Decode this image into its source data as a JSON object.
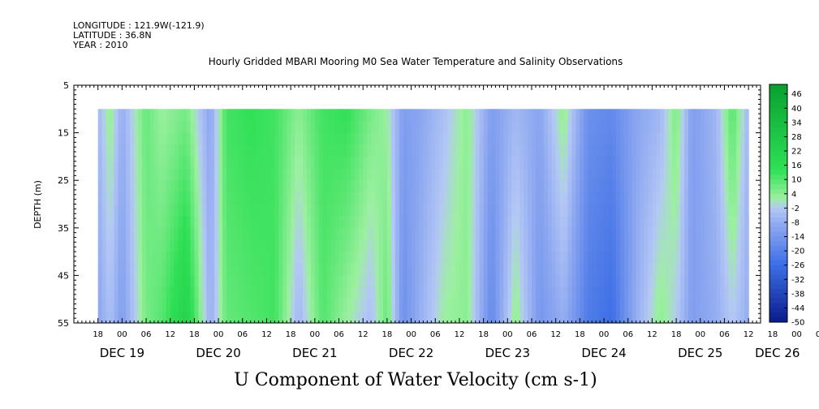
{
  "header": {
    "longitude": "LONGITUDE : 121.9W(-121.9)",
    "latitude": "LATITUDE : 36.8N",
    "year": "YEAR : 2010"
  },
  "chart_data": {
    "type": "heatmap",
    "title": "Hourly Gridded MBARI Mooring M0 Sea Water Temperature and Salinity Observations",
    "ylabel": "DEPTH (m)",
    "xlabel": "U Component of Water Velocity (cm s-1)",
    "ylim": [
      55,
      5
    ],
    "yticks": [
      "5",
      "15",
      "25",
      "35",
      "45",
      "55"
    ],
    "x_hour_ticks": [
      "18",
      "00",
      "06",
      "12",
      "18",
      "00",
      "06",
      "12",
      "18",
      "00",
      "06",
      "12",
      "18",
      "00",
      "06",
      "12",
      "18",
      "00",
      "06",
      "12",
      "18",
      "00",
      "06",
      "12",
      "18",
      "00",
      "06",
      "12",
      "18",
      "00",
      "06",
      "12"
    ],
    "x_day_labels": [
      "DEC 19",
      "DEC 20",
      "DEC 21",
      "DEC 22",
      "DEC 23",
      "DEC 24",
      "DEC 25",
      "DEC 26"
    ],
    "time_range": [
      "2010-12-19 12:00",
      "2010-12-26 15:00"
    ],
    "data_time_range": [
      "2010-12-19 18:00",
      "2010-12-26 12:00"
    ],
    "data_depth_range": [
      10,
      55
    ],
    "colorbar_levels": [
      "46",
      "40",
      "34",
      "28",
      "22",
      "16",
      "10",
      "4",
      "-2",
      "-8",
      "-14",
      "-20",
      "-26",
      "-32",
      "-38",
      "-44",
      "-50"
    ],
    "colorbar_min": -50,
    "colorbar_max": 50,
    "colors": {
      "strong_negative": "#0a1a8c",
      "negative": "#3c6ee6",
      "weak_negative": "#8aa5f0",
      "near_zero": "#b4c8f5",
      "weak_positive": "#9cf0a0",
      "positive": "#2fe055",
      "strong_positive": "#08a030"
    },
    "profile_columns": [
      {
        "time": "DEC 19 18",
        "surface": -6,
        "bottom": -10
      },
      {
        "time": "DEC 19 21",
        "surface": 4,
        "bottom": -4
      },
      {
        "time": "DEC 20 00",
        "surface": -8,
        "bottom": -12
      },
      {
        "time": "DEC 20 06",
        "surface": 8,
        "bottom": 6
      },
      {
        "time": "DEC 20 10",
        "surface": 2,
        "bottom": 10
      },
      {
        "time": "DEC 20 16",
        "surface": 6,
        "bottom": 22
      },
      {
        "time": "DEC 20 22",
        "surface": -10,
        "bottom": -8
      },
      {
        "time": "DEC 21 02",
        "surface": 12,
        "bottom": 8
      },
      {
        "time": "DEC 21 08",
        "surface": 14,
        "bottom": 10
      },
      {
        "time": "DEC 21 14",
        "surface": 12,
        "bottom": 12
      },
      {
        "time": "DEC 21 20",
        "surface": 4,
        "bottom": -6
      },
      {
        "time": "DEC 22 02",
        "surface": 12,
        "bottom": 10
      },
      {
        "time": "DEC 22 08",
        "surface": 14,
        "bottom": 2
      },
      {
        "time": "DEC 22 14",
        "surface": 6,
        "bottom": -4
      },
      {
        "time": "DEC 22 18",
        "surface": 2,
        "bottom": 8
      },
      {
        "time": "DEC 22 22",
        "surface": -12,
        "bottom": -16
      },
      {
        "time": "DEC 23 02",
        "surface": -10,
        "bottom": -8
      },
      {
        "time": "DEC 23 08",
        "surface": -4,
        "bottom": 2
      },
      {
        "time": "DEC 23 14",
        "surface": 4,
        "bottom": 4
      },
      {
        "time": "DEC 23 20",
        "surface": -12,
        "bottom": -18
      },
      {
        "time": "DEC 24 02",
        "surface": -6,
        "bottom": 4
      },
      {
        "time": "DEC 24 08",
        "surface": -10,
        "bottom": -14
      },
      {
        "time": "DEC 24 14",
        "surface": 4,
        "bottom": -8
      },
      {
        "time": "DEC 24 20",
        "surface": -16,
        "bottom": -22
      },
      {
        "time": "DEC 25 02",
        "surface": -18,
        "bottom": -26
      },
      {
        "time": "DEC 25 08",
        "surface": -10,
        "bottom": -8
      },
      {
        "time": "DEC 25 14",
        "surface": -6,
        "bottom": 4
      },
      {
        "time": "DEC 25 18",
        "surface": 6,
        "bottom": -2
      },
      {
        "time": "DEC 25 22",
        "surface": -12,
        "bottom": -12
      },
      {
        "time": "DEC 26 04",
        "surface": -6,
        "bottom": -8
      },
      {
        "time": "DEC 26 08",
        "surface": 10,
        "bottom": -2
      },
      {
        "time": "DEC 26 12",
        "surface": -6,
        "bottom": -8
      }
    ]
  }
}
